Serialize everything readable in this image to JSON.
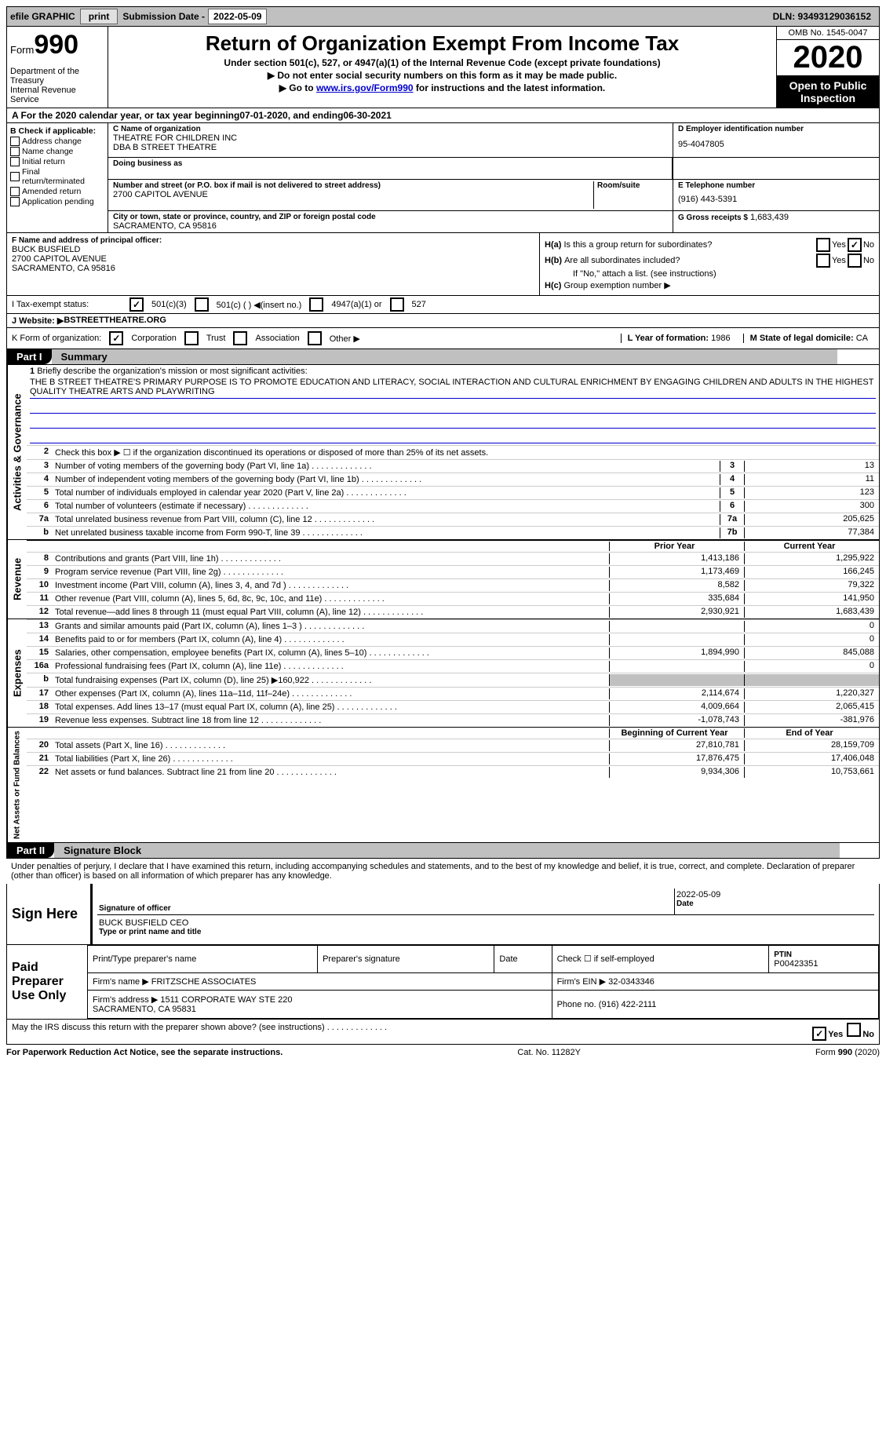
{
  "topbar": {
    "efile": "efile GRAPHIC",
    "print": "print",
    "subm_label": "Submission Date -",
    "subm_date": "2022-05-09",
    "dln": "DLN: 93493129036152"
  },
  "header": {
    "form_prefix": "Form",
    "form_num": "990",
    "dept": "Department of the Treasury\nInternal Revenue Service",
    "title": "Return of Organization Exempt From Income Tax",
    "subtitle": "Under section 501(c), 527, or 4947(a)(1) of the Internal Revenue Code (except private foundations)",
    "note1": "▶ Do not enter social security numbers on this form as it may be made public.",
    "note2_pre": "▶ Go to ",
    "note2_link": "www.irs.gov/Form990",
    "note2_post": " for instructions and the latest information.",
    "omb": "OMB No. 1545-0047",
    "year": "2020",
    "opi": "Open to Public Inspection"
  },
  "period": {
    "text_pre": "A For the 2020 calendar year, or tax year beginning ",
    "begin": "07-01-2020",
    "mid": " , and ending ",
    "end": "06-30-2021"
  },
  "boxB": {
    "title": "B Check if applicable:",
    "items": [
      "Address change",
      "Name change",
      "Initial return",
      "Final return/terminated",
      "Amended return",
      "Application pending"
    ]
  },
  "boxC": {
    "name_lbl": "C Name of organization",
    "name": "THEATRE FOR CHILDREN INC\nDBA B STREET THEATRE",
    "dba_lbl": "Doing business as",
    "dba": "",
    "addr_lbl": "Number and street (or P.O. box if mail is not delivered to street address)",
    "room_lbl": "Room/suite",
    "addr": "2700 CAPITOL AVENUE",
    "city_lbl": "City or town, state or province, country, and ZIP or foreign postal code",
    "city": "SACRAMENTO, CA  95816"
  },
  "boxD": {
    "lbl": "D Employer identification number",
    "val": "95-4047805"
  },
  "boxE": {
    "lbl": "E Telephone number",
    "val": "(916) 443-5391"
  },
  "boxG": {
    "lbl": "G Gross receipts $",
    "val": "1,683,439"
  },
  "boxF": {
    "lbl": "F Name and address of principal officer:",
    "name": "BUCK BUSFIELD",
    "addr1": "2700 CAPITOL AVENUE",
    "addr2": "SACRAMENTO, CA  95816"
  },
  "boxH": {
    "a_q": "Is this a group return for subordinates?",
    "a_pre": "H(a)",
    "yes": "Yes",
    "no": "No",
    "a_ans": "No",
    "b_pre": "H(b)",
    "b_q": "Are all subordinates included?",
    "b_note": "If \"No,\" attach a list. (see instructions)",
    "c_pre": "H(c)",
    "c_q": "Group exemption number ▶"
  },
  "rowI": {
    "lbl": "I   Tax-exempt status:",
    "opt1": "501(c)(3)",
    "opt2": "501(c) (   ) ◀(insert no.)",
    "opt3": "4947(a)(1) or",
    "opt4": "527"
  },
  "rowJ": {
    "lbl": "J   Website: ▶",
    "val": "BSTREETTHEATRE.ORG"
  },
  "rowK": {
    "lbl": "K Form of organization:",
    "opts": [
      "Corporation",
      "Trust",
      "Association",
      "Other ▶"
    ],
    "L_lbl": "L Year of formation:",
    "L_val": "1986",
    "M_lbl": "M State of legal domicile:",
    "M_val": "CA"
  },
  "parts": {
    "p1": "Part I",
    "p1_title": "Summary",
    "p2": "Part II",
    "p2_title": "Signature Block"
  },
  "summary": {
    "tab1": "Activities & Governance",
    "tab2": "Revenue",
    "tab3": "Expenses",
    "tab4": "Net Assets or Fund Balances",
    "l1_lbl": "Briefly describe the organization's mission or most significant activities:",
    "l1_txt": "THE B STREET THEATRE'S PRIMARY PURPOSE IS TO PROMOTE EDUCATION AND LITERACY, SOCIAL INTERACTION AND CULTURAL ENRICHMENT BY ENGAGING CHILDREN AND ADULTS IN THE HIGHEST QUALITY THEATRE ARTS AND PLAYWRITING",
    "l2": "Check this box ▶ ☐ if the organization discontinued its operations or disposed of more than 25% of its net assets.",
    "rows_gov": [
      {
        "n": "3",
        "d": "Number of voting members of the governing body (Part VI, line 1a)",
        "box": "3",
        "v": "13"
      },
      {
        "n": "4",
        "d": "Number of independent voting members of the governing body (Part VI, line 1b)",
        "box": "4",
        "v": "11"
      },
      {
        "n": "5",
        "d": "Total number of individuals employed in calendar year 2020 (Part V, line 2a)",
        "box": "5",
        "v": "123"
      },
      {
        "n": "6",
        "d": "Total number of volunteers (estimate if necessary)",
        "box": "6",
        "v": "300"
      },
      {
        "n": "7a",
        "d": "Total unrelated business revenue from Part VIII, column (C), line 12",
        "box": "7a",
        "v": "205,625"
      },
      {
        "n": "b",
        "d": "Net unrelated business taxable income from Form 990-T, line 39",
        "box": "7b",
        "v": "77,384"
      }
    ],
    "col_prior": "Prior Year",
    "col_curr": "Current Year",
    "rows_rev": [
      {
        "n": "8",
        "d": "Contributions and grants (Part VIII, line 1h)",
        "py": "1,413,186",
        "cy": "1,295,922"
      },
      {
        "n": "9",
        "d": "Program service revenue (Part VIII, line 2g)",
        "py": "1,173,469",
        "cy": "166,245"
      },
      {
        "n": "10",
        "d": "Investment income (Part VIII, column (A), lines 3, 4, and 7d )",
        "py": "8,582",
        "cy": "79,322"
      },
      {
        "n": "11",
        "d": "Other revenue (Part VIII, column (A), lines 5, 6d, 8c, 9c, 10c, and 11e)",
        "py": "335,684",
        "cy": "141,950"
      },
      {
        "n": "12",
        "d": "Total revenue—add lines 8 through 11 (must equal Part VIII, column (A), line 12)",
        "py": "2,930,921",
        "cy": "1,683,439"
      }
    ],
    "rows_exp": [
      {
        "n": "13",
        "d": "Grants and similar amounts paid (Part IX, column (A), lines 1–3 )",
        "py": "",
        "cy": "0"
      },
      {
        "n": "14",
        "d": "Benefits paid to or for members (Part IX, column (A), line 4)",
        "py": "",
        "cy": "0"
      },
      {
        "n": "15",
        "d": "Salaries, other compensation, employee benefits (Part IX, column (A), lines 5–10)",
        "py": "1,894,990",
        "cy": "845,088"
      },
      {
        "n": "16a",
        "d": "Professional fundraising fees (Part IX, column (A), line 11e)",
        "py": "",
        "cy": "0"
      },
      {
        "n": "b",
        "d": "Total fundraising expenses (Part IX, column (D), line 25) ▶160,922",
        "py": "grey",
        "cy": "grey"
      },
      {
        "n": "17",
        "d": "Other expenses (Part IX, column (A), lines 11a–11d, 11f–24e)",
        "py": "2,114,674",
        "cy": "1,220,327"
      },
      {
        "n": "18",
        "d": "Total expenses. Add lines 13–17 (must equal Part IX, column (A), line 25)",
        "py": "4,009,664",
        "cy": "2,065,415"
      },
      {
        "n": "19",
        "d": "Revenue less expenses. Subtract line 18 from line 12",
        "py": "-1,078,743",
        "cy": "-381,976"
      }
    ],
    "col_boy": "Beginning of Current Year",
    "col_eoy": "End of Year",
    "rows_net": [
      {
        "n": "20",
        "d": "Total assets (Part X, line 16)",
        "py": "27,810,781",
        "cy": "28,159,709"
      },
      {
        "n": "21",
        "d": "Total liabilities (Part X, line 26)",
        "py": "17,876,475",
        "cy": "17,406,048"
      },
      {
        "n": "22",
        "d": "Net assets or fund balances. Subtract line 21 from line 20",
        "py": "9,934,306",
        "cy": "10,753,661"
      }
    ]
  },
  "sig": {
    "penalty": "Under penalties of perjury, I declare that I have examined this return, including accompanying schedules and statements, and to the best of my knowledge and belief, it is true, correct, and complete. Declaration of preparer (other than officer) is based on all information of which preparer has any knowledge.",
    "sign_here": "Sign Here",
    "sig_officer_lbl": "Signature of officer",
    "date_lbl": "Date",
    "date": "2022-05-09",
    "name": "BUCK BUSFIELD CEO",
    "name_lbl": "Type or print name and title",
    "paid": "Paid Preparer Use Only",
    "prep_name_lbl": "Print/Type preparer's name",
    "prep_sig_lbl": "Preparer's signature",
    "prep_date_lbl": "Date",
    "check_self": "Check ☐ if self-employed",
    "ptin_lbl": "PTIN",
    "ptin": "P00423351",
    "firm_name_lbl": "Firm's name    ▶",
    "firm_name": "FRITZSCHE ASSOCIATES",
    "firm_ein_lbl": "Firm's EIN ▶",
    "firm_ein": "32-0343346",
    "firm_addr_lbl": "Firm's address ▶",
    "firm_addr": "1511 CORPORATE WAY STE 220\nSACRAMENTO, CA  95831",
    "phone_lbl": "Phone no.",
    "phone": "(916) 422-2111",
    "discuss": "May the IRS discuss this return with the preparer shown above? (see instructions)",
    "discuss_ans": "Yes"
  },
  "footer": {
    "left": "For Paperwork Reduction Act Notice, see the separate instructions.",
    "mid": "Cat. No. 11282Y",
    "right": "Form 990 (2020)"
  }
}
